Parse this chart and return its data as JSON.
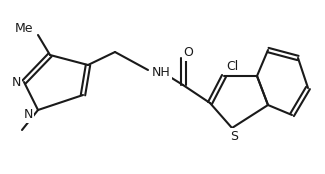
{
  "background_color": "#ffffff",
  "line_color": "#1a1a1a",
  "line_width": 1.5,
  "font_size": 9,
  "atoms": {
    "N_label": "N",
    "NH_label": "NH",
    "S_label": "S",
    "O_label": "O",
    "Cl_label": "Cl"
  }
}
